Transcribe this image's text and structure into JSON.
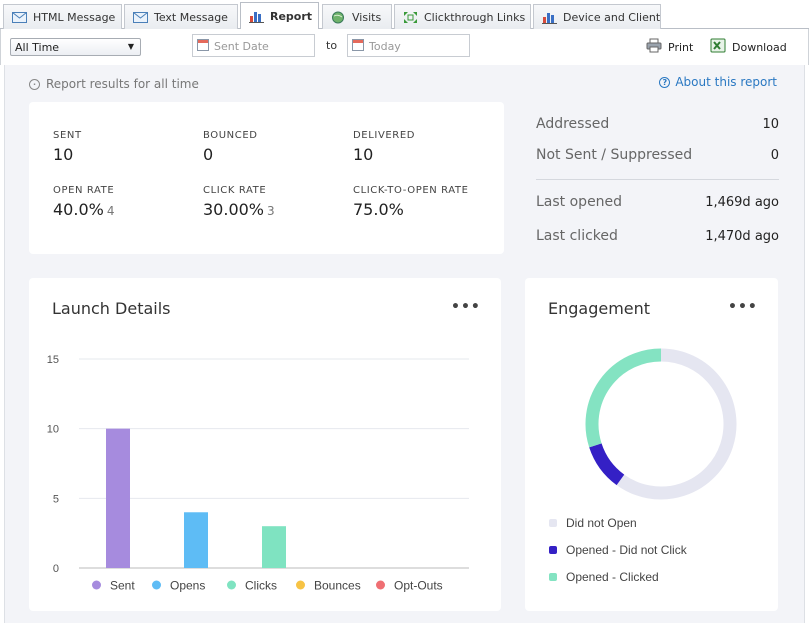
{
  "tabs": [
    {
      "label": "HTML Message",
      "icon": "envelope-icon"
    },
    {
      "label": "Text Message",
      "icon": "envelope-icon"
    },
    {
      "label": "Report",
      "icon": "bar-chart-icon",
      "active": true
    },
    {
      "label": "Visits",
      "icon": "globe-icon"
    },
    {
      "label": "Clickthrough Links",
      "icon": "expand-arrows-icon"
    },
    {
      "label": "Device and Client",
      "icon": "bar-chart-icon"
    }
  ],
  "filters": {
    "range_value": "All Time",
    "start_placeholder": "Sent Date",
    "to_label": "to",
    "end_placeholder": "Today",
    "print_label": "Print",
    "download_label": "Download"
  },
  "report": {
    "results_note": "Report results for all time",
    "about_link": "About this report"
  },
  "stats": {
    "sent": {
      "label": "SENT",
      "value": "10"
    },
    "bounced": {
      "label": "BOUNCED",
      "value": "0"
    },
    "delivered": {
      "label": "DELIVERED",
      "value": "10"
    },
    "open_rate": {
      "label": "OPEN RATE",
      "value": "40.0%",
      "count": "4"
    },
    "click_rate": {
      "label": "CLICK RATE",
      "value": "30.00%",
      "count": "3"
    },
    "ctor": {
      "label": "CLICK-TO-OPEN RATE",
      "value": "75.0%"
    }
  },
  "side_stats": {
    "addressed": {
      "label": "Addressed",
      "value": "10"
    },
    "not_sent": {
      "label": "Not Sent / Suppressed",
      "value": "0"
    },
    "last_opened": {
      "label": "Last opened",
      "value": "1,469d ago"
    },
    "last_clicked": {
      "label": "Last clicked",
      "value": "1,470d ago"
    }
  },
  "launch_card": {
    "title": "Launch Details",
    "menu": "•••"
  },
  "engagement_card": {
    "title": "Engagement",
    "menu": "•••"
  },
  "chart_data": [
    {
      "type": "bar",
      "title": "Launch Details",
      "categories": [
        "Sent",
        "Opens",
        "Clicks",
        "Bounces",
        "Opt-Outs"
      ],
      "values": [
        10,
        4,
        3,
        0,
        0
      ],
      "colors": [
        "#a68bde",
        "#5ebcf5",
        "#7fe3c1",
        "#f7c344",
        "#ef6f73"
      ],
      "ylim": [
        0,
        15
      ],
      "yticks": [
        "0",
        "5",
        "10",
        "15"
      ],
      "grid": true,
      "legend": "bottom"
    },
    {
      "type": "pie",
      "title": "Engagement",
      "categories": [
        "Did not Open",
        "Opened - Did not Click",
        "Opened - Clicked"
      ],
      "values": [
        6,
        1,
        3
      ],
      "colors": [
        "#e5e6f1",
        "#3420c5",
        "#84e3c2"
      ],
      "legend": "bottom"
    }
  ]
}
